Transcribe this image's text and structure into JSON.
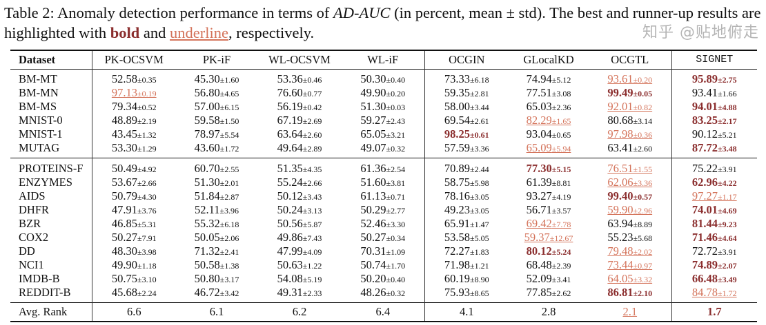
{
  "caption": {
    "prefix": "Table 2: Anomaly detection performance in terms of ",
    "metric": "AD-AUC",
    "middle": " (in percent, mean ± std). The best and runner-up results are highlighted with ",
    "bold_word": "bold",
    "and": " and ",
    "underline_word": "underline",
    "suffix": ", respectively."
  },
  "colors": {
    "best": "#8b2e2e",
    "runner_up": "#d4735a"
  },
  "columns": [
    "Dataset",
    "PK-OCSVM",
    "PK-iF",
    "WL-OCSVM",
    "WL-iF",
    "OCGIN",
    "GLocalKD",
    "OCGTL",
    "SIGNET"
  ],
  "group1": [
    {
      "dataset": "BM-MT",
      "cells": [
        [
          "52.58",
          "±0.35",
          ""
        ],
        [
          "45.30",
          "±1.60",
          ""
        ],
        [
          "53.36",
          "±0.46",
          ""
        ],
        [
          "50.30",
          "±0.40",
          ""
        ],
        [
          "73.33",
          "±6.18",
          ""
        ],
        [
          "74.94",
          "±5.12",
          ""
        ],
        [
          "93.61",
          "±0.20",
          "u"
        ],
        [
          "95.89",
          "±2.75",
          "b"
        ]
      ]
    },
    {
      "dataset": "BM-MN",
      "cells": [
        [
          "97.13",
          "±0.19",
          "u"
        ],
        [
          "56.80",
          "±4.65",
          ""
        ],
        [
          "76.60",
          "±0.77",
          ""
        ],
        [
          "49.90",
          "±0.20",
          ""
        ],
        [
          "59.35",
          "±2.81",
          ""
        ],
        [
          "77.51",
          "±3.08",
          ""
        ],
        [
          "99.49",
          "±0.05",
          "b"
        ],
        [
          "93.41",
          "±1.66",
          ""
        ]
      ]
    },
    {
      "dataset": "BM-MS",
      "cells": [
        [
          "79.34",
          "±0.52",
          ""
        ],
        [
          "57.00",
          "±6.15",
          ""
        ],
        [
          "56.19",
          "±0.42",
          ""
        ],
        [
          "51.30",
          "±0.03",
          ""
        ],
        [
          "58.00",
          "±3.44",
          ""
        ],
        [
          "65.03",
          "±2.36",
          ""
        ],
        [
          "92.01",
          "±0.82",
          "u"
        ],
        [
          "94.01",
          "±4.88",
          "b"
        ]
      ]
    },
    {
      "dataset": "MNIST-0",
      "cells": [
        [
          "48.89",
          "±2.19",
          ""
        ],
        [
          "59.58",
          "±1.50",
          ""
        ],
        [
          "67.19",
          "±2.69",
          ""
        ],
        [
          "59.27",
          "±2.43",
          ""
        ],
        [
          "69.54",
          "±2.61",
          ""
        ],
        [
          "82.29",
          "±1.65",
          "u"
        ],
        [
          "80.68",
          "±3.14",
          ""
        ],
        [
          "83.25",
          "±2.17",
          "b"
        ]
      ]
    },
    {
      "dataset": "MNIST-1",
      "cells": [
        [
          "43.45",
          "±1.32",
          ""
        ],
        [
          "78.97",
          "±5.54",
          ""
        ],
        [
          "63.64",
          "±2.60",
          ""
        ],
        [
          "65.05",
          "±3.21",
          ""
        ],
        [
          "98.25",
          "±0.61",
          "b"
        ],
        [
          "93.04",
          "±0.65",
          ""
        ],
        [
          "97.98",
          "±0.36",
          "u"
        ],
        [
          "90.12",
          "±5.21",
          ""
        ]
      ]
    },
    {
      "dataset": "MUTAG",
      "cells": [
        [
          "53.30",
          "±1.29",
          ""
        ],
        [
          "43.60",
          "±1.72",
          ""
        ],
        [
          "49.64",
          "±2.89",
          ""
        ],
        [
          "49.07",
          "±0.32",
          ""
        ],
        [
          "57.59",
          "±3.36",
          ""
        ],
        [
          "65.09",
          "±5.94",
          "u"
        ],
        [
          "63.41",
          "±2.60",
          ""
        ],
        [
          "87.72",
          "±3.48",
          "b"
        ]
      ]
    }
  ],
  "group2": [
    {
      "dataset": "PROTEINS-F",
      "cells": [
        [
          "50.49",
          "±4.92",
          ""
        ],
        [
          "60.70",
          "±2.55",
          ""
        ],
        [
          "51.35",
          "±4.35",
          ""
        ],
        [
          "61.36",
          "±2.54",
          ""
        ],
        [
          "70.89",
          "±2.44",
          ""
        ],
        [
          "77.30",
          "±5.15",
          "b"
        ],
        [
          "76.51",
          "±1.55",
          "u"
        ],
        [
          "75.22",
          "±3.91",
          ""
        ]
      ]
    },
    {
      "dataset": "ENZYMES",
      "cells": [
        [
          "53.67",
          "±2.66",
          ""
        ],
        [
          "51.30",
          "±2.01",
          ""
        ],
        [
          "55.24",
          "±2.66",
          ""
        ],
        [
          "51.60",
          "±3.81",
          ""
        ],
        [
          "58.75",
          "±5.98",
          ""
        ],
        [
          "61.39",
          "±8.81",
          ""
        ],
        [
          "62.06",
          "±3.36",
          "u"
        ],
        [
          "62.96",
          "±4.22",
          "b"
        ]
      ]
    },
    {
      "dataset": "AIDS",
      "cells": [
        [
          "50.79",
          "±4.30",
          ""
        ],
        [
          "51.84",
          "±2.87",
          ""
        ],
        [
          "50.12",
          "±3.43",
          ""
        ],
        [
          "61.13",
          "±0.71",
          ""
        ],
        [
          "78.16",
          "±3.05",
          ""
        ],
        [
          "93.27",
          "±4.19",
          ""
        ],
        [
          "99.40",
          "±0.57",
          "b"
        ],
        [
          "97.27",
          "±1.17",
          "u"
        ]
      ]
    },
    {
      "dataset": "DHFR",
      "cells": [
        [
          "47.91",
          "±3.76",
          ""
        ],
        [
          "52.11",
          "±3.96",
          ""
        ],
        [
          "50.24",
          "±3.13",
          ""
        ],
        [
          "50.29",
          "±2.77",
          ""
        ],
        [
          "49.23",
          "±3.05",
          ""
        ],
        [
          "56.71",
          "±3.57",
          ""
        ],
        [
          "59.90",
          "±2.96",
          "u"
        ],
        [
          "74.01",
          "±4.69",
          "b"
        ]
      ]
    },
    {
      "dataset": "BZR",
      "cells": [
        [
          "46.85",
          "±5.31",
          ""
        ],
        [
          "55.32",
          "±6.18",
          ""
        ],
        [
          "50.56",
          "±5.87",
          ""
        ],
        [
          "52.46",
          "±3.30",
          ""
        ],
        [
          "65.91",
          "±1.47",
          ""
        ],
        [
          "69.42",
          "±7.78",
          "u"
        ],
        [
          "63.94",
          "±8.89",
          ""
        ],
        [
          "81.44",
          "±9.23",
          "b"
        ]
      ]
    },
    {
      "dataset": "COX2",
      "cells": [
        [
          "50.27",
          "±7.91",
          ""
        ],
        [
          "50.05",
          "±2.06",
          ""
        ],
        [
          "49.86",
          "±7.43",
          ""
        ],
        [
          "50.27",
          "±0.34",
          ""
        ],
        [
          "53.58",
          "±5.05",
          ""
        ],
        [
          "59.37",
          "±12.67",
          "u"
        ],
        [
          "55.23",
          "±5.68",
          ""
        ],
        [
          "71.46",
          "±4.64",
          "b"
        ]
      ]
    },
    {
      "dataset": "DD",
      "cells": [
        [
          "48.30",
          "±3.98",
          ""
        ],
        [
          "71.32",
          "±2.41",
          ""
        ],
        [
          "47.99",
          "±4.09",
          ""
        ],
        [
          "70.31",
          "±1.09",
          ""
        ],
        [
          "72.27",
          "±1.83",
          ""
        ],
        [
          "80.12",
          "±5.24",
          "b"
        ],
        [
          "79.48",
          "±2.02",
          "u"
        ],
        [
          "72.72",
          "±3.91",
          ""
        ]
      ]
    },
    {
      "dataset": "NCI1",
      "cells": [
        [
          "49.90",
          "±1.18",
          ""
        ],
        [
          "50.58",
          "±1.38",
          ""
        ],
        [
          "50.63",
          "±1.22",
          ""
        ],
        [
          "50.74",
          "±1.70",
          ""
        ],
        [
          "71.98",
          "±1.21",
          ""
        ],
        [
          "68.48",
          "±2.39",
          ""
        ],
        [
          "73.44",
          "±0.97",
          "u"
        ],
        [
          "74.89",
          "±2.07",
          "b"
        ]
      ]
    },
    {
      "dataset": "IMDB-B",
      "cells": [
        [
          "50.75",
          "±3.10",
          ""
        ],
        [
          "50.80",
          "±3.17",
          ""
        ],
        [
          "54.08",
          "±5.19",
          ""
        ],
        [
          "50.20",
          "±0.40",
          ""
        ],
        [
          "60.19",
          "±8.90",
          ""
        ],
        [
          "52.09",
          "±3.41",
          ""
        ],
        [
          "64.05",
          "±3.32",
          "u"
        ],
        [
          "66.48",
          "±3.49",
          "b"
        ]
      ]
    },
    {
      "dataset": "REDDIT-B",
      "cells": [
        [
          "45.68",
          "±2.24",
          ""
        ],
        [
          "46.72",
          "±3.42",
          ""
        ],
        [
          "49.31",
          "±2.33",
          ""
        ],
        [
          "48.26",
          "±0.32",
          ""
        ],
        [
          "75.93",
          "±8.65",
          ""
        ],
        [
          "77.85",
          "±2.62",
          ""
        ],
        [
          "86.81",
          "±2.10",
          "b"
        ],
        [
          "84.78",
          "±1.72",
          "u"
        ]
      ]
    }
  ],
  "avg_rank": {
    "label": "Avg. Rank",
    "values": [
      [
        "6.6",
        ""
      ],
      [
        "6.1",
        ""
      ],
      [
        "6.2",
        ""
      ],
      [
        "6.4",
        ""
      ],
      [
        "4.1",
        ""
      ],
      [
        "2.8",
        ""
      ],
      [
        "2.1",
        "u"
      ],
      [
        "1.7",
        "b"
      ]
    ]
  },
  "watermark": "知乎 @贴地俯走"
}
